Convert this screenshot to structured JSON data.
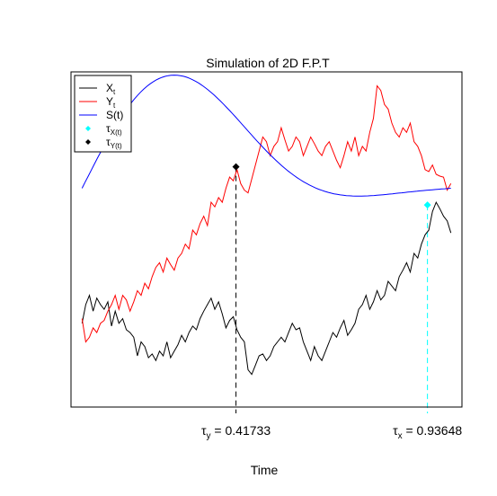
{
  "chart_data": {
    "type": "line",
    "title": "Simulation of 2D F.P.T",
    "xlabel": "Time",
    "ylabel": "",
    "xlim": [
      -0.03,
      1.03
    ],
    "ylim": [
      -1.65,
      1.95
    ],
    "axes_box": true,
    "grid": false,
    "legend_position": "top-left",
    "legend": [
      {
        "label": "X",
        "sub": "t",
        "kind": "line",
        "color": "#000000"
      },
      {
        "label": "Y",
        "sub": "t",
        "kind": "line",
        "color": "#FF0000"
      },
      {
        "label": "S(t)",
        "sub": "",
        "kind": "line",
        "color": "#0000FF"
      },
      {
        "label": "τ",
        "sub": "X(t)",
        "kind": "point",
        "color": "#00FFFF"
      },
      {
        "label": "τ",
        "sub": "Y(t)",
        "kind": "point",
        "color": "#000000"
      }
    ],
    "series": [
      {
        "name": "Xt",
        "color": "#000000",
        "x": [
          0.0,
          0.01,
          0.02,
          0.03,
          0.04,
          0.05,
          0.06,
          0.07,
          0.08,
          0.09,
          0.1,
          0.11,
          0.12,
          0.13,
          0.14,
          0.15,
          0.16,
          0.17,
          0.18,
          0.19,
          0.2,
          0.21,
          0.22,
          0.23,
          0.24,
          0.25,
          0.26,
          0.27,
          0.28,
          0.29,
          0.3,
          0.31,
          0.32,
          0.33,
          0.34,
          0.35,
          0.36,
          0.37,
          0.38,
          0.39,
          0.4,
          0.41,
          0.42,
          0.43,
          0.44,
          0.45,
          0.46,
          0.47,
          0.48,
          0.49,
          0.5,
          0.51,
          0.52,
          0.53,
          0.54,
          0.55,
          0.56,
          0.57,
          0.58,
          0.59,
          0.6,
          0.61,
          0.62,
          0.63,
          0.64,
          0.65,
          0.66,
          0.67,
          0.68,
          0.69,
          0.7,
          0.71,
          0.72,
          0.73,
          0.74,
          0.75,
          0.76,
          0.77,
          0.78,
          0.79,
          0.8,
          0.81,
          0.82,
          0.83,
          0.84,
          0.85,
          0.86,
          0.87,
          0.88,
          0.89,
          0.9,
          0.91,
          0.92,
          0.93,
          0.94,
          0.95,
          0.96,
          0.97,
          0.98,
          0.99,
          1.0
        ],
        "y": [
          -0.75,
          -0.55,
          -0.45,
          -0.62,
          -0.48,
          -0.55,
          -0.6,
          -0.52,
          -0.78,
          -0.62,
          -0.75,
          -0.7,
          -0.82,
          -0.85,
          -0.9,
          -1.1,
          -0.95,
          -1.0,
          -1.12,
          -1.08,
          -1.15,
          -1.05,
          -1.1,
          -0.95,
          -1.12,
          -1.05,
          -0.98,
          -0.88,
          -0.95,
          -0.85,
          -0.78,
          -0.82,
          -0.7,
          -0.62,
          -0.55,
          -0.48,
          -0.6,
          -0.52,
          -0.65,
          -0.8,
          -0.72,
          -0.68,
          -0.82,
          -0.9,
          -0.95,
          -1.25,
          -1.3,
          -1.2,
          -1.1,
          -1.08,
          -1.15,
          -1.1,
          -1.0,
          -0.95,
          -0.9,
          -0.95,
          -0.85,
          -0.75,
          -0.82,
          -0.8,
          -0.95,
          -1.05,
          -1.15,
          -1.0,
          -1.1,
          -1.15,
          -1.05,
          -0.95,
          -0.85,
          -0.9,
          -0.8,
          -0.72,
          -0.88,
          -0.82,
          -0.75,
          -0.6,
          -0.55,
          -0.45,
          -0.6,
          -0.52,
          -0.4,
          -0.5,
          -0.45,
          -0.3,
          -0.35,
          -0.4,
          -0.25,
          -0.18,
          -0.1,
          -0.2,
          0.0,
          -0.05,
          0.1,
          0.2,
          0.25,
          0.45,
          0.55,
          0.48,
          0.4,
          0.35,
          0.22
        ],
        "markers": false
      },
      {
        "name": "Yt",
        "color": "#FF0000",
        "x": [
          0.0,
          0.01,
          0.02,
          0.03,
          0.04,
          0.05,
          0.06,
          0.07,
          0.08,
          0.09,
          0.1,
          0.11,
          0.12,
          0.13,
          0.14,
          0.15,
          0.16,
          0.17,
          0.18,
          0.19,
          0.2,
          0.21,
          0.22,
          0.23,
          0.24,
          0.25,
          0.26,
          0.27,
          0.28,
          0.29,
          0.3,
          0.31,
          0.32,
          0.33,
          0.34,
          0.35,
          0.36,
          0.37,
          0.38,
          0.39,
          0.4,
          0.41,
          0.42,
          0.43,
          0.44,
          0.45,
          0.46,
          0.47,
          0.48,
          0.49,
          0.5,
          0.51,
          0.52,
          0.53,
          0.54,
          0.55,
          0.56,
          0.57,
          0.58,
          0.59,
          0.6,
          0.61,
          0.62,
          0.63,
          0.64,
          0.65,
          0.66,
          0.67,
          0.68,
          0.69,
          0.7,
          0.71,
          0.72,
          0.73,
          0.74,
          0.75,
          0.76,
          0.77,
          0.78,
          0.79,
          0.8,
          0.81,
          0.82,
          0.83,
          0.84,
          0.85,
          0.86,
          0.87,
          0.88,
          0.89,
          0.9,
          0.91,
          0.92,
          0.93,
          0.94,
          0.95,
          0.96,
          0.97,
          0.98,
          0.99,
          1.0
        ],
        "y": [
          -0.7,
          -0.95,
          -0.9,
          -0.8,
          -0.85,
          -0.75,
          -0.72,
          -0.62,
          -0.55,
          -0.45,
          -0.6,
          -0.45,
          -0.5,
          -0.62,
          -0.52,
          -0.4,
          -0.45,
          -0.32,
          -0.38,
          -0.25,
          -0.15,
          -0.1,
          -0.2,
          -0.05,
          -0.12,
          -0.18,
          -0.05,
          0.0,
          0.1,
          0.05,
          0.25,
          0.2,
          0.32,
          0.4,
          0.3,
          0.55,
          0.5,
          0.6,
          0.55,
          0.7,
          0.82,
          0.78,
          0.9,
          0.75,
          0.68,
          0.65,
          0.8,
          0.95,
          1.1,
          1.25,
          1.2,
          1.05,
          1.15,
          1.2,
          1.35,
          1.22,
          1.1,
          1.15,
          1.25,
          1.2,
          1.05,
          1.15,
          1.25,
          1.18,
          1.1,
          1.05,
          1.15,
          1.2,
          1.1,
          1.0,
          0.92,
          1.05,
          1.2,
          1.1,
          1.25,
          1.05,
          1.15,
          1.1,
          1.3,
          1.45,
          1.8,
          1.75,
          1.6,
          1.55,
          1.4,
          1.3,
          1.25,
          1.35,
          1.3,
          1.4,
          1.2,
          1.15,
          1.05,
          0.9,
          0.88,
          0.95,
          0.85,
          0.83,
          0.82,
          0.68,
          0.75
        ],
        "markers": false
      },
      {
        "name": "S(t)",
        "color": "#0000FF",
        "function": "0.65*sin(2*pi*t)+0.6*sin(pi*t)+0.2*sin(3*pi*t)+0.7",
        "samples": 120
      },
      {
        "name": "τX(t)",
        "color": "#00FFFF",
        "kind": "point",
        "x": [
          0.93648
        ],
        "y": [
          0.52
        ]
      },
      {
        "name": "τY(t)",
        "color": "#000000",
        "kind": "point",
        "x": [
          0.41733
        ],
        "y": [
          0.93
        ]
      }
    ],
    "vlines": [
      {
        "x": 0.41733,
        "y_top": 0.93,
        "color": "#000000",
        "dash": "6,4"
      },
      {
        "x": 0.93648,
        "y_top": 0.52,
        "color": "#00FFFF",
        "dash": "6,4"
      }
    ],
    "annotations": [
      {
        "symbol": "τ",
        "sub": "y",
        "text": " = 0.41733",
        "x": 0.41733
      },
      {
        "symbol": "τ",
        "sub": "x",
        "text": " = 0.93648",
        "x": 0.93648
      }
    ]
  }
}
